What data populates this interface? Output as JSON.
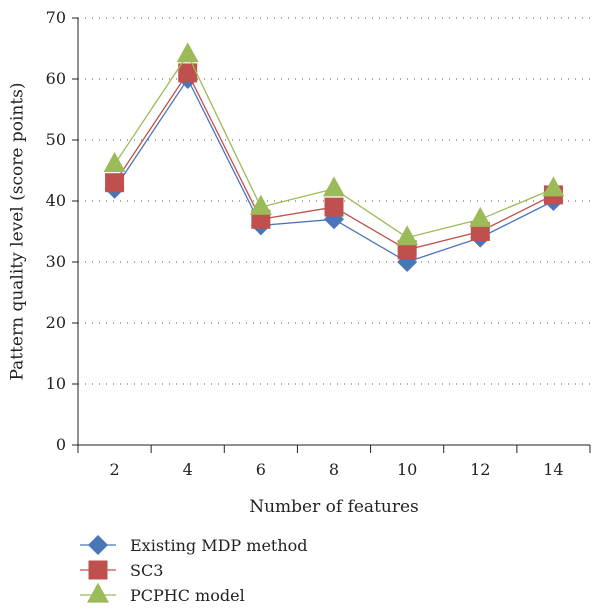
{
  "chart_data": {
    "type": "line",
    "title": "",
    "xlabel": "Number of features",
    "ylabel": "Pattern quality level (score points)",
    "categories": [
      "2",
      "4",
      "6",
      "8",
      "10",
      "12",
      "14"
    ],
    "ylim": [
      0,
      70
    ],
    "yticks": [
      "0",
      "10",
      "20",
      "30",
      "40",
      "50",
      "60",
      "70"
    ],
    "grid": "horizontal dotted",
    "legend_position": "bottom",
    "series": [
      {
        "name": "Existing MDP method",
        "values": [
          42,
          60,
          36,
          37,
          30,
          34,
          40
        ],
        "color": "#4a76b8",
        "marker": "diamond"
      },
      {
        "name": "SC3",
        "values": [
          43,
          61,
          37,
          39,
          32,
          35,
          41
        ],
        "color": "#c0504d",
        "marker": "square"
      },
      {
        "name": "PCPHC model",
        "values": [
          46,
          64,
          39,
          42,
          34,
          37,
          42
        ],
        "color": "#9bbb59",
        "marker": "triangle"
      }
    ]
  }
}
